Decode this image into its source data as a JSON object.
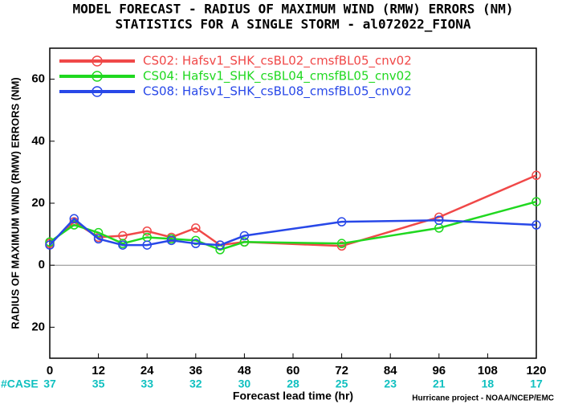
{
  "chart_data": {
    "type": "line",
    "title": "MODEL FORECAST - RADIUS OF MAXIMUM WIND (RMW) ERRORS (NM)",
    "subtitle": "STATISTICS FOR A SINGLE STORM - al072022_FIONA",
    "xlabel": "Forecast lead time (hr)",
    "ylabel": "RADIUS OF MAXIMUM WIND (RMW) ERRORS (NM)",
    "footer": "Hurricane project - NOAA/NCEP/EMC",
    "x": [
      0,
      6,
      12,
      18,
      24,
      30,
      36,
      42,
      48,
      72,
      96,
      120
    ],
    "series": [
      {
        "name": "CS02: Hafsv1_SHK_csBL02_cmsfBL05_cnv02",
        "color": "#f04848",
        "values": [
          7,
          14,
          9,
          9.5,
          11,
          9,
          12,
          6.5,
          7.5,
          6.2,
          15.5,
          29
        ]
      },
      {
        "name": "CS04: Hafsv1_SHK_csBL04_cmsfBL05_cnv02",
        "color": "#20d820",
        "values": [
          7.5,
          13,
          10.5,
          7,
          9,
          8.5,
          8,
          5,
          7.5,
          7,
          12,
          20.5
        ]
      },
      {
        "name": "CS08: Hafsv1_SHK_csBL08_cmsfBL05_cnv02",
        "color": "#2848e8",
        "values": [
          6.5,
          15,
          8.5,
          6.5,
          6.5,
          8,
          7,
          6.5,
          9.5,
          14,
          14.5,
          13
        ]
      }
    ],
    "xlim": [
      0,
      120
    ],
    "xticks": [
      0,
      12,
      24,
      36,
      48,
      60,
      72,
      84,
      96,
      108,
      120
    ],
    "ylim": [
      -30,
      70
    ],
    "yticks": [
      {
        "value": -20,
        "label": "20"
      },
      0,
      20,
      40,
      60
    ],
    "case_label": "#CASE",
    "case_counts": [
      37,
      35,
      33,
      32,
      30,
      28,
      25,
      23,
      21,
      18,
      17
    ],
    "case_color": "#10c0c0"
  }
}
